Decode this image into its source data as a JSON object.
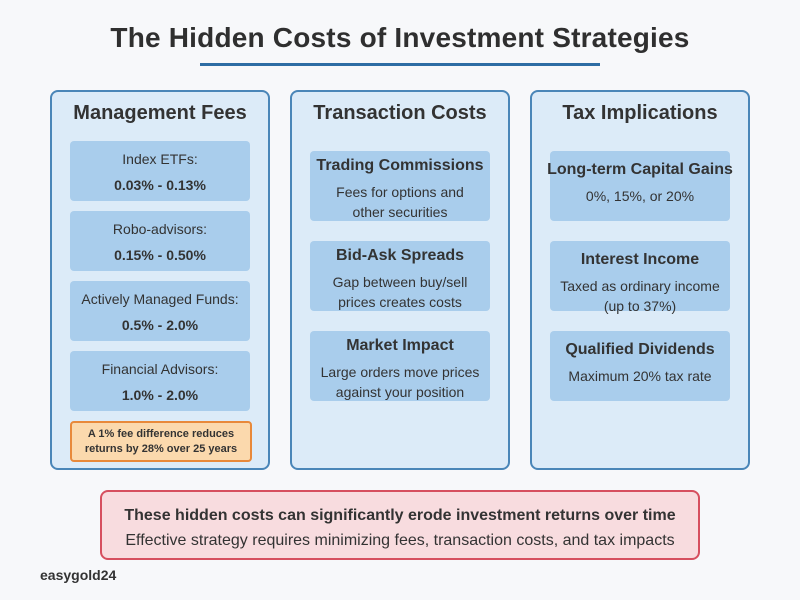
{
  "title": "The Hidden Costs of Investment Strategies",
  "colors": {
    "background": "#f7f8fa",
    "accent_blue": "#2e6da4",
    "panel_border": "#4a86b8",
    "panel_fill": "#dcebf8",
    "box_fill": "#a9cdec",
    "note_fill": "#fbd9ad",
    "note_border": "#e8893a",
    "alert_fill": "#f8dcdf",
    "alert_border": "#d64f5f"
  },
  "management_fees": {
    "title": "Management Fees",
    "items": [
      {
        "label": "Index ETFs:",
        "value": "0.03% - 0.13%"
      },
      {
        "label": "Robo-advisors:",
        "value": "0.15% - 0.50%"
      },
      {
        "label": "Actively Managed Funds:",
        "value": "0.5% - 2.0%"
      },
      {
        "label": "Financial Advisors:",
        "value": "1.0% - 2.0%"
      }
    ],
    "note_line1": "A 1% fee difference reduces",
    "note_line2": "returns by 28% over 25 years"
  },
  "transaction_costs": {
    "title": "Transaction Costs",
    "items": [
      {
        "title": "Trading Commissions",
        "desc1": "Fees for options and",
        "desc2": "other securities"
      },
      {
        "title": "Bid-Ask Spreads",
        "desc1": "Gap between buy/sell",
        "desc2": "prices creates costs"
      },
      {
        "title": "Market Impact",
        "desc1": "Large orders move prices",
        "desc2": "against your position"
      }
    ]
  },
  "tax_implications": {
    "title": "Tax Implications",
    "items": [
      {
        "title": "Long-term Capital Gains",
        "desc1": "0%, 15%, or 20%",
        "desc2": ""
      },
      {
        "title": "Interest Income",
        "desc1": "Taxed as ordinary income",
        "desc2": "(up to 37%)"
      },
      {
        "title": "Qualified Dividends",
        "desc1": "Maximum 20% tax rate",
        "desc2": ""
      }
    ]
  },
  "footer": {
    "main": "These hidden costs can significantly erode investment returns over time",
    "sub": "Effective strategy requires minimizing fees, transaction costs, and tax impacts"
  },
  "brand": "easygold24"
}
